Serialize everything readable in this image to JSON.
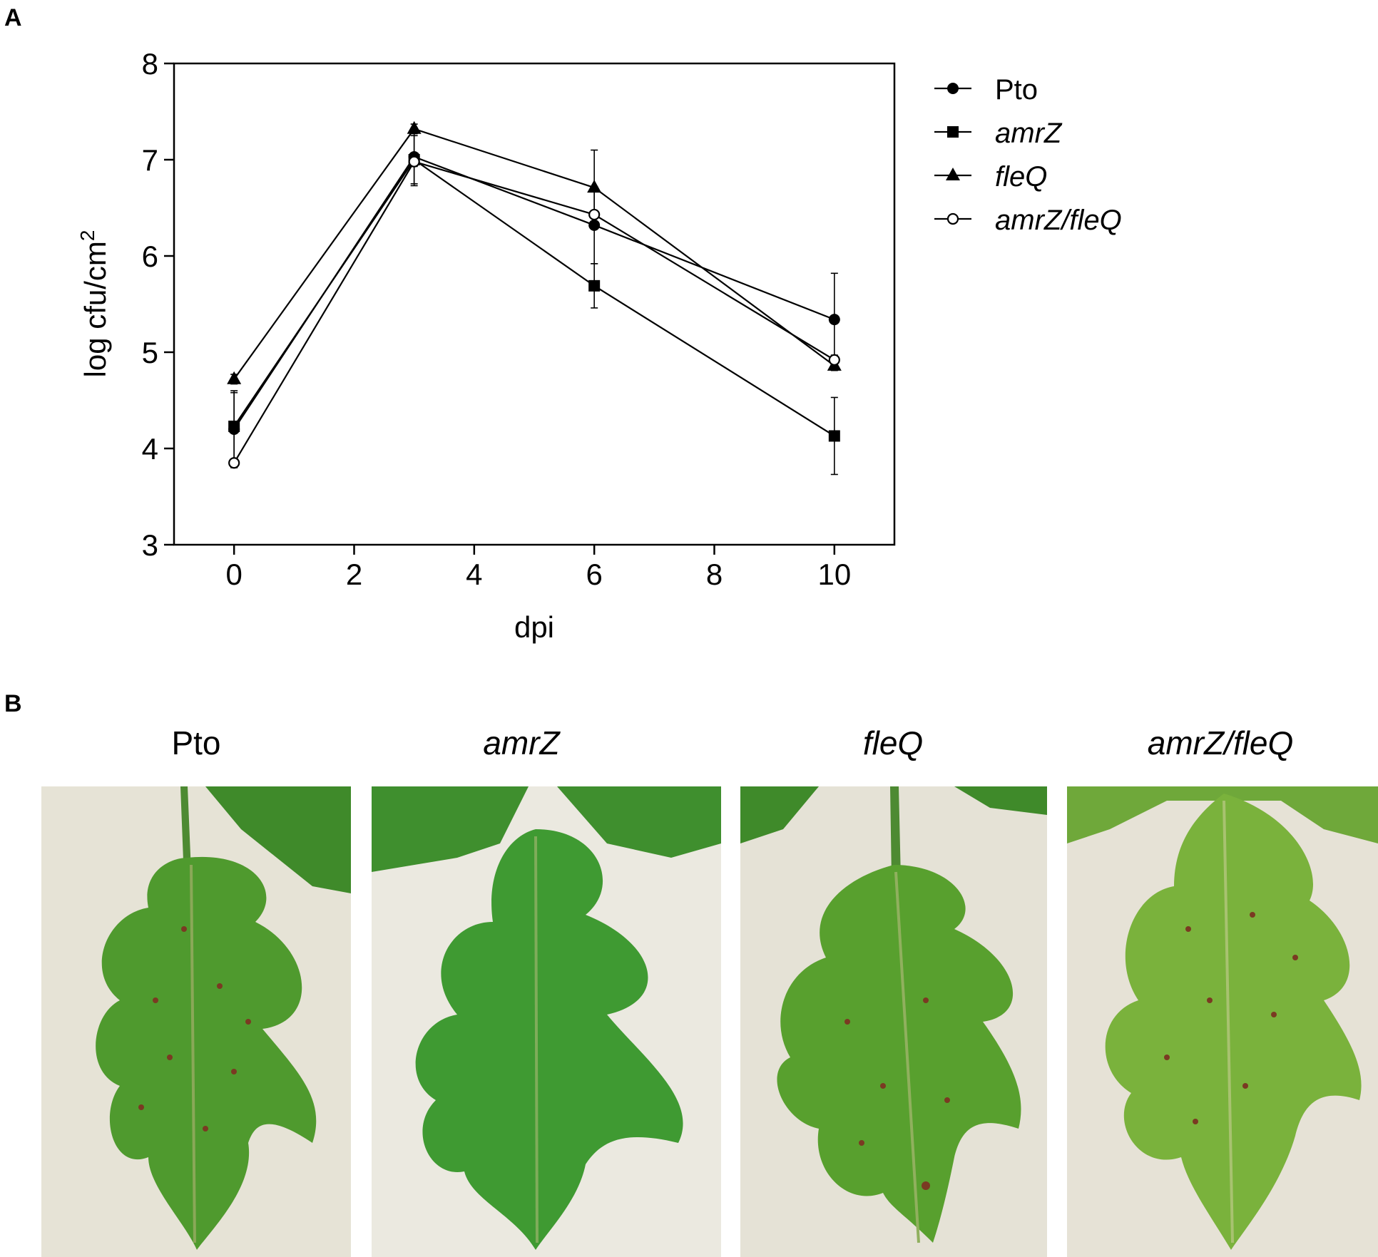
{
  "panel_a_label": "A",
  "panel_b_label": "B",
  "chart_data": {
    "type": "line",
    "xlabel": "dpi",
    "ylabel_main": "log cfu/cm",
    "ylabel_sup": "2",
    "xlim": [
      -1,
      11
    ],
    "ylim": [
      3,
      8
    ],
    "x_ticks": [
      0,
      2,
      4,
      6,
      8,
      10
    ],
    "y_ticks": [
      3,
      4,
      5,
      6,
      7,
      8
    ],
    "legend_position": "right",
    "series": [
      {
        "name": "Pto",
        "marker": "circle-filled",
        "italic": false,
        "x": [
          0,
          3,
          6,
          10
        ],
        "y": [
          4.2,
          7.03,
          6.32,
          5.34
        ],
        "err": [
          0.4,
          0.3,
          0.4,
          0.48
        ]
      },
      {
        "name": "amrZ",
        "marker": "square-filled",
        "italic": true,
        "x": [
          0,
          3,
          6,
          10
        ],
        "y": [
          4.23,
          7.0,
          5.69,
          4.13
        ],
        "err": [
          0.35,
          0.25,
          0.23,
          0.4
        ]
      },
      {
        "name": "fleQ",
        "marker": "triangle-filled",
        "italic": true,
        "x": [
          0,
          3,
          6,
          10
        ],
        "y": [
          4.72,
          7.32,
          6.71,
          4.86
        ],
        "err": [
          0.05,
          0.05,
          0.39,
          0.05
        ]
      },
      {
        "name": "amrZ/fleQ",
        "marker": "circle-open",
        "italic": true,
        "x": [
          0,
          3,
          6,
          10
        ],
        "y": [
          3.85,
          6.98,
          6.43,
          4.92
        ],
        "err": [
          0.03,
          0.05,
          0.03,
          0.05
        ]
      }
    ]
  },
  "photos": [
    {
      "title": "Pto",
      "italic": false
    },
    {
      "title": "amrZ",
      "italic": true
    },
    {
      "title": "fleQ",
      "italic": true
    },
    {
      "title": "amrZ/fleQ",
      "italic": true
    }
  ]
}
